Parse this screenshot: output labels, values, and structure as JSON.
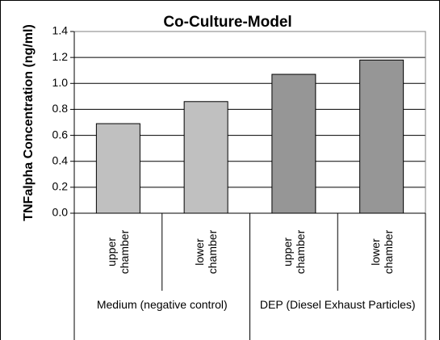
{
  "chart_data": {
    "type": "bar",
    "title": "Co-Culture-Model",
    "y_label": "TNFalpha Concentration (ng/ml)",
    "categories": [
      "upper chamber",
      "lower chamber",
      "upper chamber",
      "lower chamber"
    ],
    "groups": [
      "Medium (negative control)",
      "DEP (Diesel Exhaust Particles)"
    ],
    "values": [
      0.69,
      0.86,
      1.07,
      1.18
    ],
    "colors": [
      "#c0c0c0",
      "#c0c0c0",
      "#969696",
      "#969696"
    ],
    "ylim": [
      0,
      1.4
    ],
    "yticks": [
      {
        "value": 0,
        "label": "0.0"
      },
      0.2,
      0.4,
      0.6,
      0.8,
      {
        "value": 1,
        "label": "1.0"
      },
      1.2,
      1.4
    ],
    "grid": true
  }
}
